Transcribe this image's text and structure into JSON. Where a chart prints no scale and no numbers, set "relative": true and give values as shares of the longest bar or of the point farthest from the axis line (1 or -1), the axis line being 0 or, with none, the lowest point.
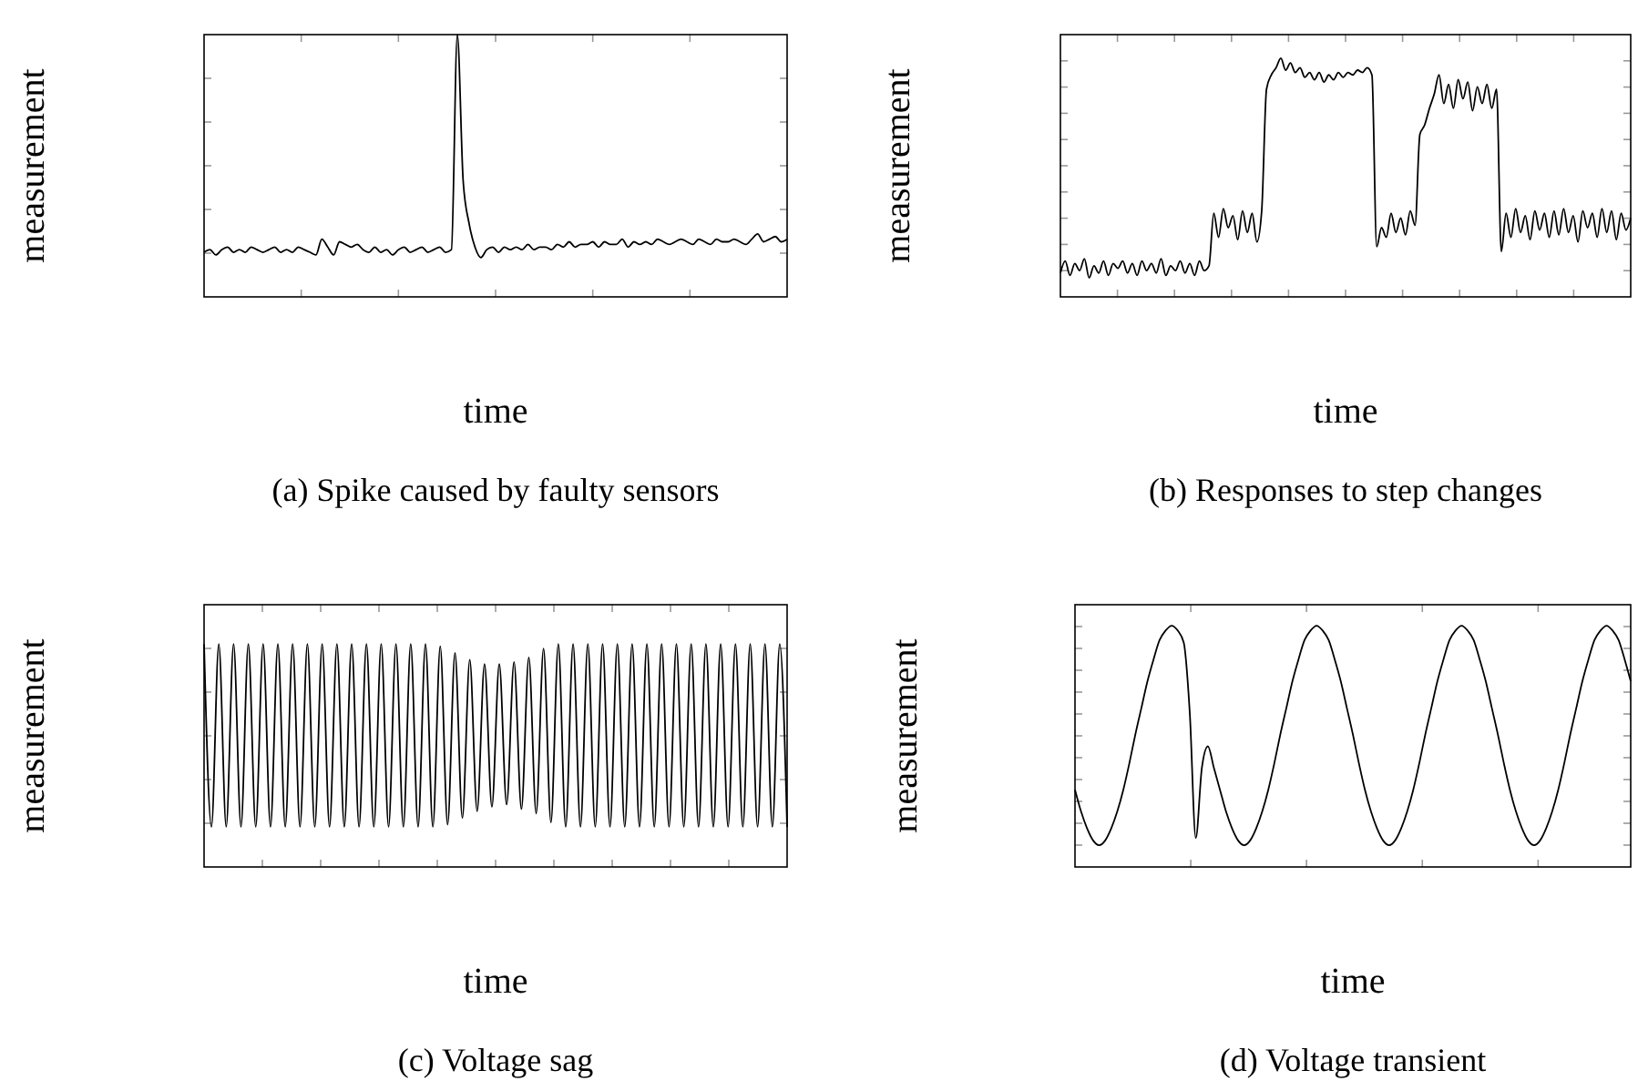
{
  "chart_data": [
    {
      "type": "line",
      "relative": true,
      "title": "(a) Spike caused by faulty sensors",
      "xlabel": "time",
      "ylabel": "measurement",
      "categories": [
        null,
        null,
        null,
        null,
        null,
        null,
        null,
        null,
        null,
        null,
        null,
        null,
        null,
        null,
        null,
        null,
        null,
        null,
        null,
        null,
        null,
        null,
        null,
        null,
        null,
        null,
        null,
        null,
        null,
        null,
        null,
        null,
        null,
        null,
        null,
        null,
        null,
        null,
        null,
        null,
        null,
        null,
        null,
        null,
        null,
        null,
        null,
        null,
        null,
        null,
        null,
        null,
        null,
        null,
        null,
        null,
        null,
        null,
        null,
        null,
        null,
        null,
        null,
        null,
        null,
        null,
        null,
        null,
        null,
        null,
        null,
        null,
        null,
        null,
        null,
        null,
        null,
        null,
        null,
        null,
        null,
        null,
        null,
        null,
        null,
        null,
        null,
        null,
        null,
        null,
        null,
        null,
        null,
        null,
        null,
        null,
        null,
        null,
        null,
        null
      ],
      "series": [
        {
          "color": "#000000",
          "values": [
            0.17,
            0.18,
            0.16,
            0.18,
            0.19,
            0.17,
            0.18,
            0.17,
            0.19,
            0.18,
            0.17,
            0.18,
            0.19,
            0.17,
            0.18,
            0.17,
            0.19,
            0.18,
            0.17,
            0.16,
            0.22,
            0.19,
            0.16,
            0.21,
            0.2,
            0.19,
            0.2,
            0.18,
            0.17,
            0.19,
            0.17,
            0.18,
            0.16,
            0.18,
            0.19,
            0.17,
            0.18,
            0.19,
            0.17,
            0.18,
            0.19,
            0.17,
            0.18,
            1,
            0.44,
            0.28,
            0.19,
            0.15,
            0.18,
            0.19,
            0.17,
            0.19,
            0.18,
            0.19,
            0.18,
            0.2,
            0.18,
            0.19,
            0.19,
            0.18,
            0.2,
            0.19,
            0.21,
            0.19,
            0.2,
            0.2,
            0.21,
            0.19,
            0.21,
            0.2,
            0.2,
            0.22,
            0.19,
            0.21,
            0.2,
            0.21,
            0.2,
            0.22,
            0.21,
            0.2,
            0.21,
            0.22,
            0.21,
            0.2,
            0.22,
            0.21,
            0.2,
            0.22,
            0.21,
            0.21,
            0.22,
            0.21,
            0.2,
            0.22,
            0.24,
            0.21,
            0.22,
            0.23,
            0.21,
            0.22
          ]
        }
      ]
    },
    {
      "type": "line",
      "relative": true,
      "title": "(b) Responses to step changes",
      "xlabel": "time",
      "ylabel": "measurement",
      "categories": [
        null,
        null,
        null,
        null,
        null,
        null,
        null,
        null,
        null,
        null,
        null,
        null,
        null,
        null,
        null,
        null,
        null,
        null,
        null,
        null,
        null,
        null,
        null,
        null,
        null,
        null,
        null,
        null,
        null,
        null,
        null,
        null,
        null,
        null,
        null,
        null,
        null,
        null,
        null,
        null,
        null,
        null,
        null,
        null,
        null,
        null,
        null,
        null,
        null,
        null,
        null,
        null,
        null,
        null,
        null,
        null,
        null,
        null,
        null,
        null,
        null,
        null,
        null,
        null,
        null,
        null,
        null,
        null,
        null,
        null,
        null,
        null,
        null,
        null,
        null,
        null,
        null,
        null,
        null,
        null,
        null,
        null,
        null,
        null,
        null,
        null,
        null,
        null,
        null,
        null,
        null,
        null,
        null,
        null,
        null,
        null,
        null,
        null,
        null,
        null,
        null,
        null,
        null,
        null,
        null,
        null,
        null,
        null,
        null,
        null,
        null,
        null,
        null,
        null,
        null,
        null,
        null,
        null,
        null,
        null
      ],
      "series": [
        {
          "color": "#000000",
          "values": [
            0.1,
            0.15,
            0.09,
            0.14,
            0.11,
            0.16,
            0.08,
            0.13,
            0.1,
            0.15,
            0.09,
            0.14,
            0.12,
            0.15,
            0.1,
            0.14,
            0.09,
            0.15,
            0.11,
            0.14,
            0.1,
            0.16,
            0.09,
            0.13,
            0.11,
            0.15,
            0.1,
            0.14,
            0.09,
            0.15,
            0.11,
            0.13,
            0.35,
            0.25,
            0.37,
            0.29,
            0.34,
            0.24,
            0.36,
            0.27,
            0.35,
            0.23,
            0.36,
            0.87,
            0.93,
            0.96,
            1,
            0.95,
            0.98,
            0.94,
            0.96,
            0.92,
            0.94,
            0.91,
            0.94,
            0.9,
            0.93,
            0.91,
            0.94,
            0.92,
            0.94,
            0.93,
            0.95,
            0.94,
            0.96,
            0.93,
            0.21,
            0.29,
            0.25,
            0.35,
            0.27,
            0.33,
            0.26,
            0.36,
            0.3,
            0.68,
            0.72,
            0.79,
            0.85,
            0.93,
            0.81,
            0.89,
            0.79,
            0.91,
            0.83,
            0.9,
            0.78,
            0.88,
            0.81,
            0.89,
            0.79,
            0.87,
            0.19,
            0.35,
            0.25,
            0.37,
            0.27,
            0.34,
            0.24,
            0.36,
            0.28,
            0.35,
            0.25,
            0.36,
            0.26,
            0.37,
            0.27,
            0.34,
            0.23,
            0.36,
            0.29,
            0.35,
            0.25,
            0.37,
            0.27,
            0.36,
            0.24,
            0.35,
            0.28,
            0.33
          ]
        }
      ]
    },
    {
      "type": "line",
      "relative": true,
      "title": "(c) Voltage sag",
      "xlabel": "time",
      "ylabel": "measurement",
      "categories": [
        null,
        null,
        null,
        null,
        null,
        null,
        null,
        null,
        null,
        null,
        null,
        null,
        null,
        null,
        null,
        null,
        null,
        null,
        null,
        null,
        null,
        null,
        null,
        null,
        null,
        null,
        null,
        null,
        null,
        null,
        null,
        null,
        null,
        null,
        null,
        null,
        null,
        null,
        null,
        null,
        null,
        null,
        null,
        null,
        null,
        null,
        null,
        null,
        null,
        null,
        null,
        null,
        null,
        null,
        null,
        null,
        null,
        null,
        null,
        null,
        null,
        null,
        null,
        null,
        null,
        null,
        null,
        null,
        null,
        null,
        null,
        null,
        null,
        null,
        null,
        null,
        null,
        null,
        null,
        null
      ],
      "series": [
        {
          "color": "#000000",
          "values": [
            1,
            0.18,
            1,
            0.18,
            1,
            0.18,
            1,
            0.18,
            1,
            0.18,
            1,
            0.18,
            1,
            0.18,
            1,
            0.18,
            1,
            0.18,
            1,
            0.18,
            1,
            0.18,
            1,
            0.18,
            1,
            0.18,
            1,
            0.18,
            1,
            0.18,
            1,
            0.18,
            0.99,
            0.19,
            0.96,
            0.22,
            0.93,
            0.25,
            0.91,
            0.27,
            0.91,
            0.28,
            0.92,
            0.26,
            0.94,
            0.24,
            0.98,
            0.2,
            1,
            0.18,
            1,
            0.18,
            1,
            0.18,
            1,
            0.18,
            1,
            0.18,
            1,
            0.18,
            1,
            0.18,
            1,
            0.18,
            1,
            0.18,
            1,
            0.18,
            1,
            0.18,
            1,
            0.18,
            1,
            0.18,
            1,
            0.18,
            1,
            0.18,
            1,
            0.18
          ]
        }
      ]
    },
    {
      "type": "line",
      "relative": true,
      "title": "(d) Voltage transient",
      "xlabel": "time",
      "ylabel": "measurement",
      "categories": [
        null,
        null,
        null,
        null,
        null,
        null,
        null,
        null,
        null,
        null,
        null,
        null,
        null,
        null,
        null,
        null,
        null,
        null,
        null,
        null,
        null,
        null,
        null,
        null,
        null,
        null,
        null,
        null,
        null,
        null,
        null,
        null,
        null,
        null,
        null,
        null,
        null,
        null,
        null,
        null,
        null,
        null,
        null,
        null,
        null,
        null,
        null,
        null,
        null,
        null,
        null,
        null,
        null,
        null,
        null,
        null,
        null,
        null,
        null,
        null,
        null,
        null,
        null,
        null,
        null,
        null,
        null,
        null,
        null,
        null,
        null,
        null,
        null,
        null,
        null,
        null,
        null,
        null,
        null,
        null,
        null,
        null,
        null,
        null,
        null,
        null,
        null,
        null,
        null,
        null,
        null,
        null,
        null
      ],
      "series": [
        {
          "color": "#000000",
          "values": [
            0.32,
            0.23,
            0.16,
            0.11,
            0.09,
            0.11,
            0.16,
            0.23,
            0.32,
            0.43,
            0.55,
            0.66,
            0.77,
            0.86,
            0.94,
            0.98,
            1,
            0.98,
            0.93,
            0.64,
            0.12,
            0.41,
            0.5,
            0.41,
            0.32,
            0.23,
            0.16,
            0.11,
            0.09,
            0.11,
            0.16,
            0.23,
            0.32,
            0.43,
            0.55,
            0.66,
            0.77,
            0.86,
            0.94,
            0.98,
            1,
            0.98,
            0.94,
            0.86,
            0.77,
            0.66,
            0.55,
            0.43,
            0.32,
            0.23,
            0.16,
            0.11,
            0.09,
            0.11,
            0.16,
            0.23,
            0.32,
            0.43,
            0.55,
            0.66,
            0.77,
            0.86,
            0.94,
            0.98,
            1,
            0.98,
            0.94,
            0.86,
            0.77,
            0.66,
            0.55,
            0.43,
            0.32,
            0.23,
            0.16,
            0.11,
            0.09,
            0.11,
            0.16,
            0.23,
            0.32,
            0.43,
            0.55,
            0.66,
            0.77,
            0.86,
            0.94,
            0.98,
            1,
            0.98,
            0.94,
            0.86,
            0.77
          ]
        }
      ]
    }
  ]
}
